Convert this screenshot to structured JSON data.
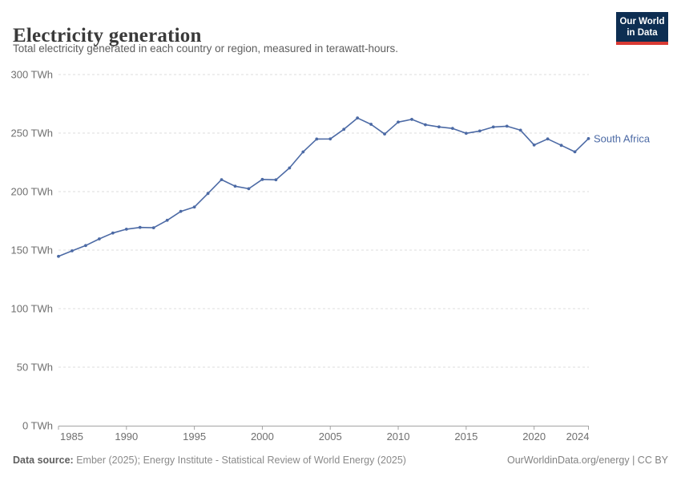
{
  "header": {
    "title": "Electricity generation",
    "subtitle": "Total electricity generated in each country or region, measured in terawatt-hours.",
    "logo": {
      "line1": "Our World",
      "line2": "in Data"
    }
  },
  "footer": {
    "source_label": "Data source:",
    "source_text": " Ember (2025); Energy Institute - Statistical Review of World Energy (2025)",
    "right_text": "OurWorldinData.org/energy | CC BY"
  },
  "chart_data": {
    "type": "line",
    "title": "Electricity generation",
    "subtitle": "Total electricity generated in each country or region, measured in terawatt-hours.",
    "unit": "TWh",
    "xlabel": "",
    "ylabel": "",
    "grid": true,
    "legend_position": "end-of-line label",
    "ylim": [
      0,
      300
    ],
    "y_ticks": [
      0,
      50,
      100,
      150,
      200,
      250,
      300
    ],
    "y_tick_suffix": " TWh",
    "x_ticks": [
      1985,
      1990,
      1995,
      2000,
      2005,
      2010,
      2015,
      2020,
      2024
    ],
    "x": [
      1985,
      1986,
      1987,
      1988,
      1989,
      1990,
      1991,
      1992,
      1993,
      1994,
      1995,
      1996,
      1997,
      1998,
      1999,
      2000,
      2001,
      2002,
      2003,
      2004,
      2005,
      2006,
      2007,
      2008,
      2009,
      2010,
      2011,
      2012,
      2013,
      2014,
      2015,
      2016,
      2017,
      2018,
      2019,
      2020,
      2021,
      2022,
      2023,
      2024
    ],
    "series": [
      {
        "name": "South Africa",
        "values": [
          144.7,
          149.4,
          153.9,
          159.6,
          164.6,
          167.9,
          169.4,
          169.1,
          175.5,
          183.1,
          186.8,
          198.4,
          210.2,
          204.6,
          202.5,
          210.4,
          210.1,
          220.2,
          233.9,
          244.9,
          245.0,
          253.2,
          262.9,
          257.5,
          249.2,
          259.4,
          261.7,
          257.1,
          255.3,
          254.0,
          249.8,
          251.8,
          255.2,
          255.9,
          252.5,
          239.8,
          245.0,
          239.5,
          234.0,
          245.3
        ]
      }
    ],
    "colors": {
      "line": "#4c6aa5",
      "grid": "#dcdcdc",
      "axis": "#a3a3a3",
      "tick_label": "#6f6f6f",
      "entity_label": "#4c6aa5"
    }
  }
}
